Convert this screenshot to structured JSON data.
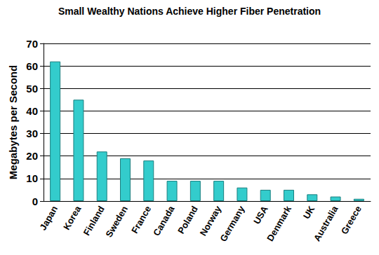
{
  "chart_data": {
    "type": "bar",
    "title": "Small Wealthy Nations Achieve Higher Fiber Penetration",
    "y_label": "Megabytes per Second",
    "categories": [
      "Japan",
      "Korea",
      "Finland",
      "Sweden",
      "France",
      "Canada",
      "Poland",
      "Norway",
      "Germany",
      "USA",
      "Denmark",
      "UK",
      "Australia",
      "Greece"
    ],
    "values": [
      62,
      45,
      22,
      19,
      18,
      9,
      9,
      9,
      6,
      5,
      5,
      3,
      2,
      1
    ],
    "color": "#33cccc",
    "ylim": [
      0,
      70
    ],
    "yticks": [
      0,
      10,
      20,
      30,
      40,
      50,
      60,
      70
    ],
    "grid": true
  }
}
